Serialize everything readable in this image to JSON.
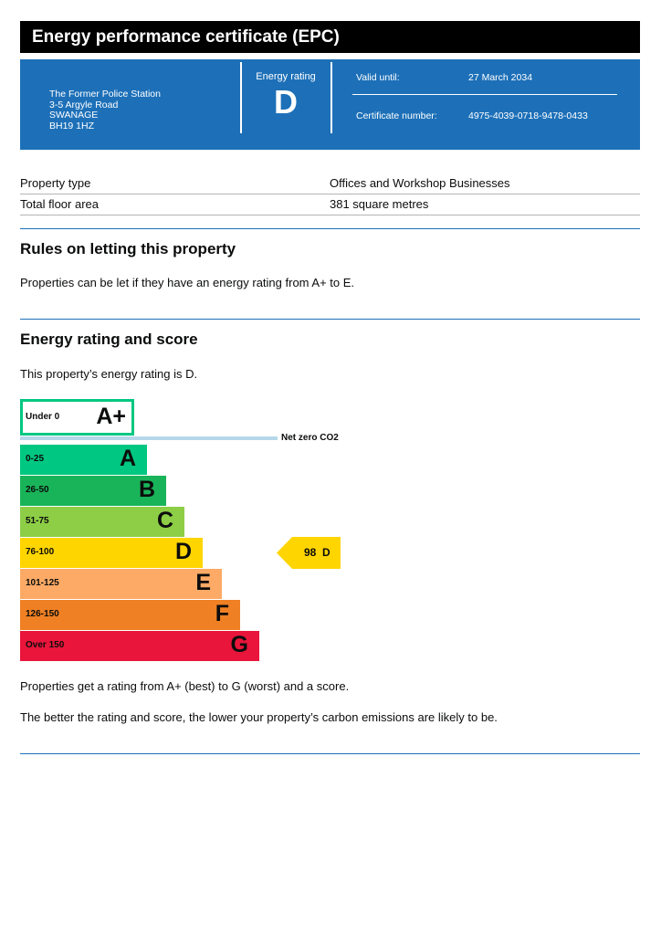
{
  "title": "Energy performance certificate (EPC)",
  "address": [
    "The Former Police Station",
    "3-5 Argyle Road",
    "SWANAGE",
    "BH19 1HZ"
  ],
  "energy_rating": {
    "label": "Energy rating",
    "value": "D"
  },
  "valid_until": {
    "label": "Valid until:",
    "value": "27 March 2034"
  },
  "certificate_number": {
    "label": "Certificate number:",
    "value": "4975-4039-0718-9478-0433"
  },
  "property": [
    {
      "key": "Property type",
      "value": "Offices and Workshop Businesses"
    },
    {
      "key": "Total floor area",
      "value": "381 square metres"
    }
  ],
  "rules": {
    "heading": "Rules on letting this property",
    "text": "Properties can be let if they have an energy rating from A+ to E."
  },
  "rating_section": {
    "heading": "Energy rating and score",
    "intro": "This property’s energy rating is D.",
    "aplus": {
      "range": "Under 0",
      "letter": "A+",
      "color": "#00c781"
    },
    "net_zero_label": "Net zero CO2",
    "bands": [
      {
        "range": "0-25",
        "letter": "A",
        "color": "#00c781"
      },
      {
        "range": "26-50",
        "letter": "B",
        "color": "#19b459"
      },
      {
        "range": "51-75",
        "letter": "C",
        "color": "#8dce46"
      },
      {
        "range": "76-100",
        "letter": "D",
        "color": "#ffd500"
      },
      {
        "range": "101-125",
        "letter": "E",
        "color": "#fcaa65"
      },
      {
        "range": "126-150",
        "letter": "F",
        "color": "#ef8023"
      },
      {
        "range": "Over 150",
        "letter": "G",
        "color": "#e9153b"
      }
    ],
    "current": {
      "score": "98",
      "letter": "D",
      "color": "#ffd500"
    },
    "note1": "Properties get a rating from A+ (best) to G (worst) and a score.",
    "note2": "The better the rating and score, the lower your property’s carbon emissions are likely to be."
  }
}
